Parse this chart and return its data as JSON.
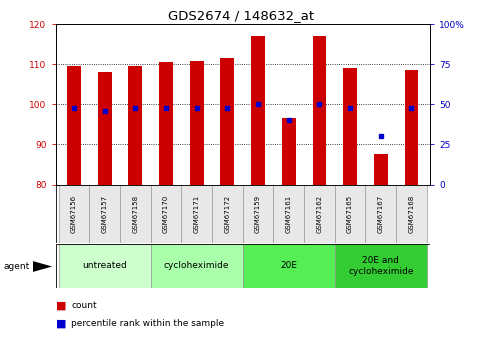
{
  "title": "GDS2674 / 148632_at",
  "samples": [
    "GSM67156",
    "GSM67157",
    "GSM67158",
    "GSM67170",
    "GSM67171",
    "GSM67172",
    "GSM67159",
    "GSM67161",
    "GSM67162",
    "GSM67165",
    "GSM67167",
    "GSM67168"
  ],
  "counts": [
    109.5,
    108.0,
    109.5,
    110.5,
    110.8,
    111.5,
    117.0,
    96.5,
    117.0,
    109.0,
    87.5,
    108.5
  ],
  "percentiles": [
    48,
    46,
    48,
    48,
    48,
    48,
    50,
    40,
    50,
    48,
    30,
    48
  ],
  "ylim_left": [
    80,
    120
  ],
  "ylim_right": [
    0,
    100
  ],
  "yticks_left": [
    80,
    90,
    100,
    110,
    120
  ],
  "yticks_right": [
    0,
    25,
    50,
    75,
    100
  ],
  "bar_color": "#cc0000",
  "dot_color": "#0000cc",
  "bar_bottom": 80,
  "groups": [
    {
      "label": "untreated",
      "start": 0,
      "end": 2,
      "color": "#ccffcc"
    },
    {
      "label": "cycloheximide",
      "start": 3,
      "end": 5,
      "color": "#aaffaa"
    },
    {
      "label": "20E",
      "start": 6,
      "end": 8,
      "color": "#55ee55"
    },
    {
      "label": "20E and\ncycloheximide",
      "start": 9,
      "end": 11,
      "color": "#33cc33"
    }
  ],
  "legend_count_label": "count",
  "legend_pct_label": "percentile rank within the sample",
  "agent_label": "agent",
  "title_fontsize": 9.5,
  "tick_fontsize": 6.5,
  "group_fontsize": 6.5,
  "sample_fontsize": 5.0,
  "legend_fontsize": 6.5
}
